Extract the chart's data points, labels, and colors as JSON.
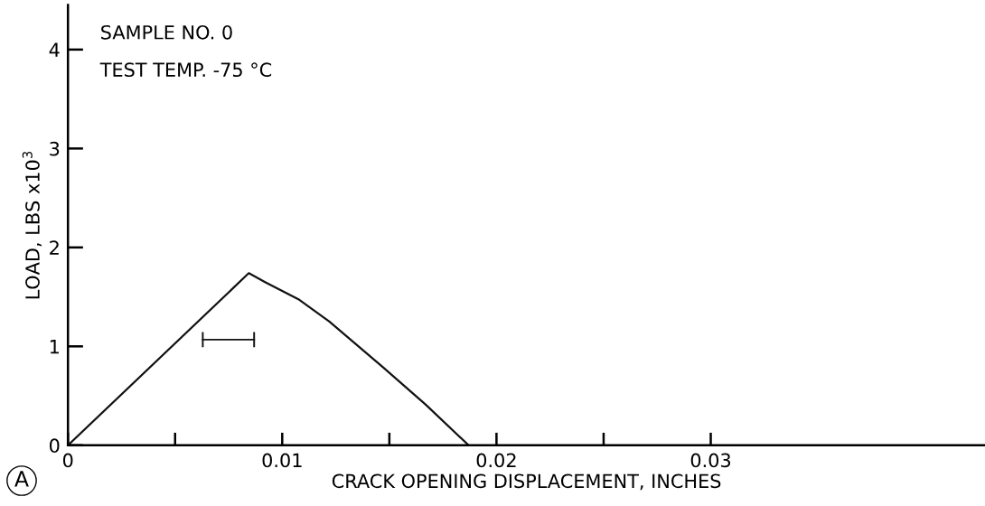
{
  "chart_data": {
    "type": "line",
    "xlabel": "CRACK OPENING DISPLACEMENT, INCHES",
    "ylabel": "LOAD, LBS x10$^{3}$",
    "annotations": [
      "SAMPLE NO. 0",
      "TEST TEMP. -75 °C",
      "A"
    ],
    "series": [
      {
        "color": "#111111",
        "x": [
          0,
          0.00844,
          0.0092,
          0.0108,
          0.0122,
          0.0147,
          0.0167,
          0.0187
        ],
        "values": [
          0,
          1.74,
          1.65,
          1.47,
          1.25,
          0.79,
          0.41,
          0
        ]
      }
    ],
    "xlim": [
      0,
      0.0428
    ],
    "ylim": [
      0,
      4.45
    ],
    "xticks": [
      0,
      {
        "value": 0.005,
        "label": null
      },
      0.01,
      {
        "value": 0.015,
        "label": null
      },
      0.02,
      {
        "value": 0.025,
        "label": null
      },
      0.03
    ],
    "yticks": [
      0,
      1,
      2,
      3,
      4
    ],
    "grid": false,
    "legend": false
  }
}
